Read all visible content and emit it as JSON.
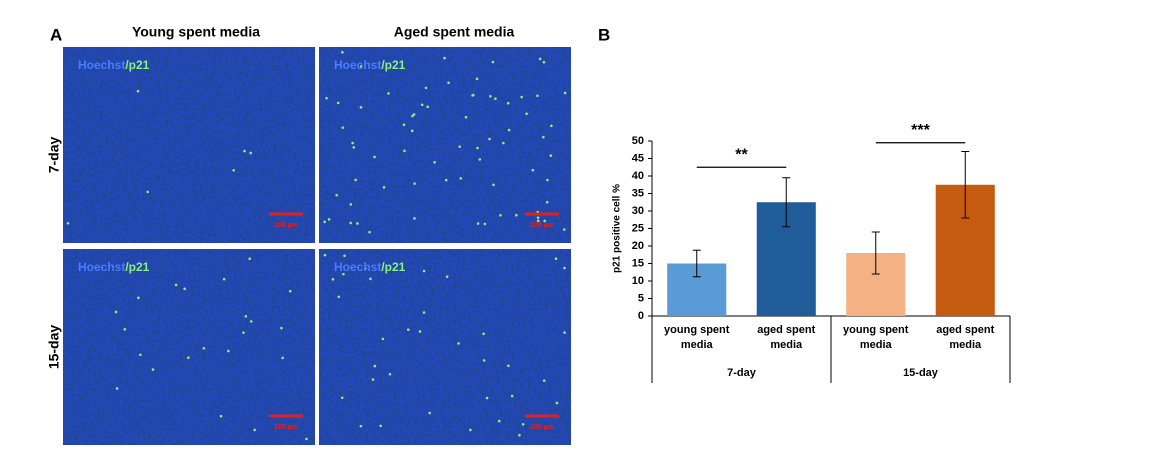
{
  "panel_a": {
    "label": "A",
    "columns": [
      "Young spent media",
      "Aged spent media"
    ],
    "rows": [
      "7-day",
      "15-day"
    ],
    "images": [
      {
        "stain_blue": "Hoechst",
        "stain_green": "/p21",
        "scale": "100 µm"
      },
      {
        "stain_blue": "Hoechst",
        "stain_green": "/p21",
        "scale": "100 µm"
      },
      {
        "stain_blue": "Hoechst",
        "stain_green": "/p21",
        "scale": "100 µm"
      },
      {
        "stain_blue": "Hoechst",
        "stain_green": "/p21",
        "scale": "100 µm"
      }
    ]
  },
  "chart_data": {
    "type": "bar",
    "label": "B",
    "categories": [
      "young spent media",
      "aged spent media",
      "young spent media",
      "aged spent media"
    ],
    "groups": [
      "7-day",
      "15-day"
    ],
    "values": [
      15,
      32.5,
      18,
      37.5
    ],
    "errors": [
      3.8,
      7,
      6,
      9.5
    ],
    "colors": [
      "#5b9bd5",
      "#1f5c99",
      "#f4b183",
      "#c55a11"
    ],
    "y_label": "p21 positive cell %",
    "ylim": [
      0,
      50
    ],
    "yticks": [
      0,
      5,
      10,
      15,
      20,
      25,
      30,
      35,
      40,
      45,
      50
    ],
    "annotations": [
      {
        "text": "**",
        "y": 42.5
      },
      {
        "text": "***",
        "y": 49.5
      }
    ]
  }
}
